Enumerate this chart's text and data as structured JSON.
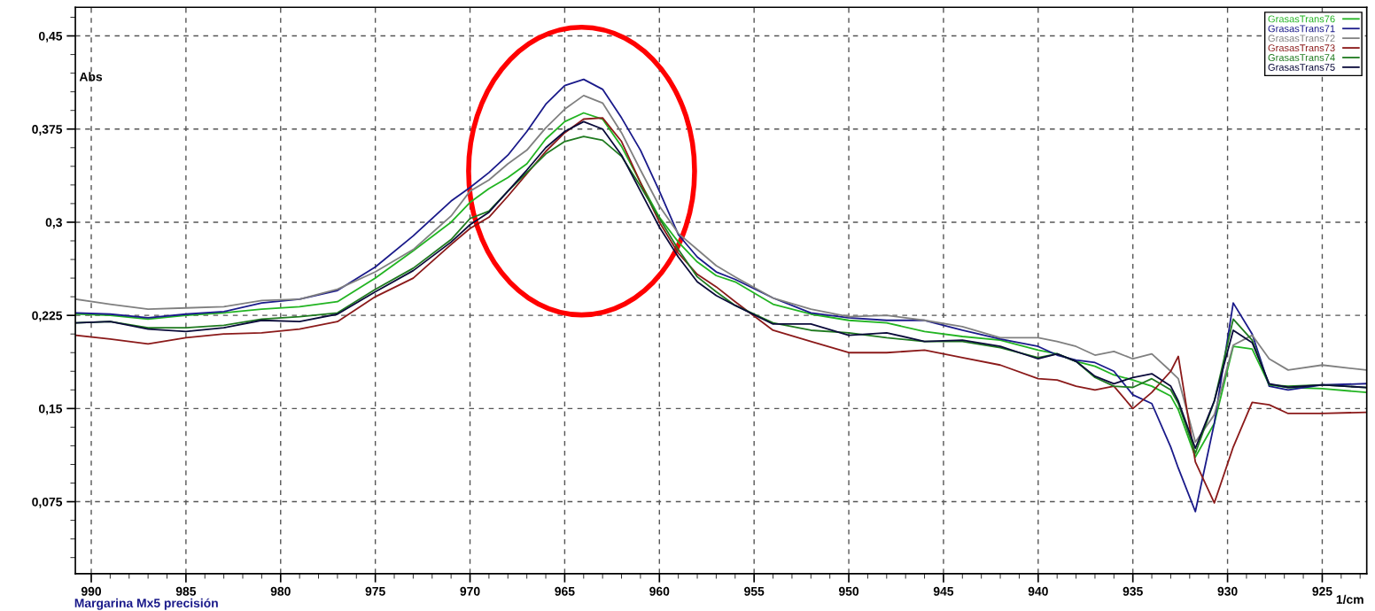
{
  "chart_data": {
    "type": "line",
    "xlabel": "1/cm",
    "ylabel": "Abs",
    "annotations": [
      "Margarina Mx5 precisión"
    ],
    "x": [
      990.8,
      989,
      987,
      985,
      983,
      981,
      979,
      977,
      975,
      973,
      971,
      970,
      969,
      968,
      967,
      966,
      965,
      964,
      963,
      962,
      961,
      960,
      959,
      958,
      957,
      956,
      954,
      952,
      950,
      948,
      946,
      944,
      942,
      940,
      939,
      938,
      937,
      936,
      935,
      934,
      933,
      932.6,
      931.7,
      930.7,
      929.7,
      928.7,
      927.8,
      926.8,
      925,
      922.7
    ],
    "series": [
      {
        "name": "GrasasTrans76",
        "color": "#22b422",
        "values": [
          0.226,
          0.225,
          0.222,
          0.225,
          0.227,
          0.23,
          0.232,
          0.236,
          0.255,
          0.277,
          0.3,
          0.316,
          0.327,
          0.336,
          0.347,
          0.367,
          0.381,
          0.388,
          0.383,
          0.361,
          0.332,
          0.304,
          0.284,
          0.268,
          0.257,
          0.252,
          0.234,
          0.226,
          0.221,
          0.219,
          0.212,
          0.208,
          0.205,
          0.197,
          0.194,
          0.188,
          0.184,
          0.177,
          0.173,
          0.168,
          0.16,
          0.149,
          0.111,
          0.138,
          0.2,
          0.198,
          0.169,
          0.167,
          0.166,
          0.163
        ]
      },
      {
        "name": "GrasasTrans71",
        "color": "#1a1a8a",
        "values": [
          0.227,
          0.226,
          0.223,
          0.226,
          0.228,
          0.235,
          0.238,
          0.245,
          0.264,
          0.289,
          0.317,
          0.328,
          0.34,
          0.354,
          0.373,
          0.395,
          0.41,
          0.415,
          0.407,
          0.384,
          0.358,
          0.325,
          0.29,
          0.272,
          0.26,
          0.254,
          0.239,
          0.227,
          0.223,
          0.221,
          0.221,
          0.213,
          0.206,
          0.2,
          0.193,
          0.189,
          0.187,
          0.18,
          0.161,
          0.154,
          0.119,
          0.102,
          0.067,
          0.138,
          0.235,
          0.21,
          0.168,
          0.165,
          0.169,
          0.17
        ]
      },
      {
        "name": "GrasasTrans72",
        "color": "#808080",
        "values": [
          0.238,
          0.234,
          0.23,
          0.231,
          0.232,
          0.237,
          0.238,
          0.246,
          0.26,
          0.278,
          0.305,
          0.325,
          0.334,
          0.347,
          0.358,
          0.376,
          0.391,
          0.402,
          0.396,
          0.372,
          0.342,
          0.313,
          0.291,
          0.278,
          0.265,
          0.256,
          0.239,
          0.23,
          0.224,
          0.225,
          0.221,
          0.216,
          0.207,
          0.207,
          0.204,
          0.2,
          0.193,
          0.196,
          0.19,
          0.194,
          0.18,
          0.174,
          0.123,
          0.145,
          0.201,
          0.209,
          0.19,
          0.181,
          0.185,
          0.181
        ]
      },
      {
        "name": "GrasasTrans73",
        "color": "#8b1a1a",
        "values": [
          0.209,
          0.206,
          0.202,
          0.207,
          0.21,
          0.211,
          0.214,
          0.22,
          0.24,
          0.255,
          0.282,
          0.295,
          0.304,
          0.321,
          0.339,
          0.357,
          0.372,
          0.383,
          0.384,
          0.365,
          0.332,
          0.3,
          0.275,
          0.258,
          0.248,
          0.236,
          0.213,
          0.204,
          0.195,
          0.195,
          0.197,
          0.191,
          0.185,
          0.174,
          0.173,
          0.168,
          0.165,
          0.168,
          0.15,
          0.163,
          0.18,
          0.192,
          0.107,
          0.074,
          0.119,
          0.155,
          0.153,
          0.146,
          0.146,
          0.147
        ]
      },
      {
        "name": "GrasasTrans74",
        "color": "#1f7a1f",
        "values": [
          0.219,
          0.22,
          0.215,
          0.215,
          0.217,
          0.222,
          0.224,
          0.227,
          0.246,
          0.263,
          0.286,
          0.303,
          0.309,
          0.325,
          0.34,
          0.355,
          0.365,
          0.369,
          0.366,
          0.353,
          0.329,
          0.303,
          0.278,
          0.256,
          0.244,
          0.233,
          0.219,
          0.213,
          0.211,
          0.207,
          0.204,
          0.204,
          0.199,
          0.191,
          0.194,
          0.188,
          0.175,
          0.168,
          0.167,
          0.174,
          0.165,
          0.154,
          0.114,
          0.156,
          0.222,
          0.205,
          0.169,
          0.168,
          0.169,
          0.167
        ]
      },
      {
        "name": "GrasasTrans75",
        "color": "#0a0a3a",
        "values": [
          0.219,
          0.22,
          0.214,
          0.212,
          0.215,
          0.221,
          0.22,
          0.226,
          0.244,
          0.261,
          0.284,
          0.298,
          0.308,
          0.325,
          0.342,
          0.36,
          0.373,
          0.381,
          0.375,
          0.354,
          0.325,
          0.296,
          0.272,
          0.252,
          0.241,
          0.233,
          0.218,
          0.218,
          0.209,
          0.211,
          0.204,
          0.205,
          0.2,
          0.19,
          0.194,
          0.188,
          0.176,
          0.17,
          0.175,
          0.178,
          0.168,
          0.156,
          0.118,
          0.156,
          0.213,
          0.203,
          0.17,
          0.167,
          0.169,
          0.167
        ]
      }
    ],
    "xlim": [
      990.84,
      922.65
    ],
    "ylim": [
      0.017,
      0.473
    ],
    "xticks": [
      990,
      985,
      980,
      975,
      970,
      965,
      960,
      955,
      950,
      945,
      940,
      935,
      930,
      925
    ],
    "yticks": [
      {
        "value": 0.075,
        "label": "0,075"
      },
      {
        "value": 0.15,
        "label": "0,15"
      },
      {
        "value": 0.225,
        "label": "0,225"
      },
      {
        "value": 0.3,
        "label": "0,3"
      },
      {
        "value": 0.375,
        "label": "0,375"
      },
      {
        "value": 0.45,
        "label": "0,45"
      }
    ],
    "grid": true,
    "legend": "top right",
    "marker": "none",
    "line_style": "solid"
  }
}
